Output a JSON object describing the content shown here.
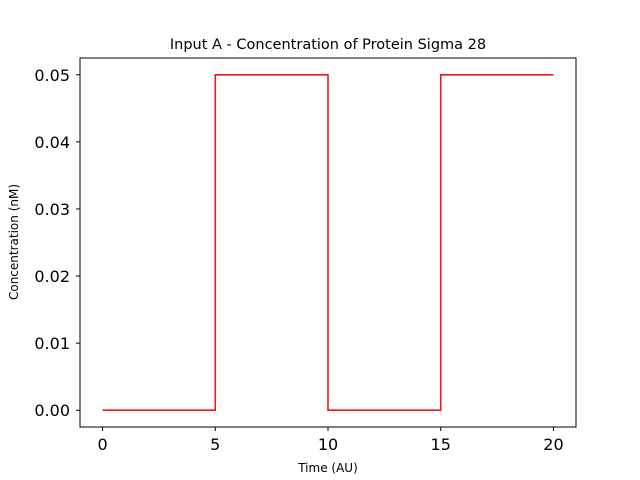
{
  "chart_data": {
    "type": "line",
    "title": "Input A - Concentration of Protein Sigma 28",
    "xlabel": "Time (AU)",
    "ylabel": "Concentration (nM)",
    "xlim": [
      -1,
      21
    ],
    "ylim": [
      -0.0025,
      0.0525
    ],
    "x_ticks": [
      0,
      5,
      10,
      15,
      20
    ],
    "x_tick_labels": [
      "0",
      "5",
      "10",
      "15",
      "20"
    ],
    "y_ticks": [
      0,
      0.01,
      0.02,
      0.03,
      0.04,
      0.05
    ],
    "y_tick_labels": [
      "0.00",
      "0.01",
      "0.02",
      "0.03",
      "0.04",
      "0.05"
    ],
    "grid": false,
    "series": [
      {
        "color": "#e41a1c",
        "step": true,
        "x": [
          0,
          5,
          5,
          10,
          10,
          15,
          15,
          20
        ],
        "y": [
          0,
          0,
          0.05,
          0.05,
          0,
          0,
          0.05,
          0.05
        ]
      }
    ]
  }
}
